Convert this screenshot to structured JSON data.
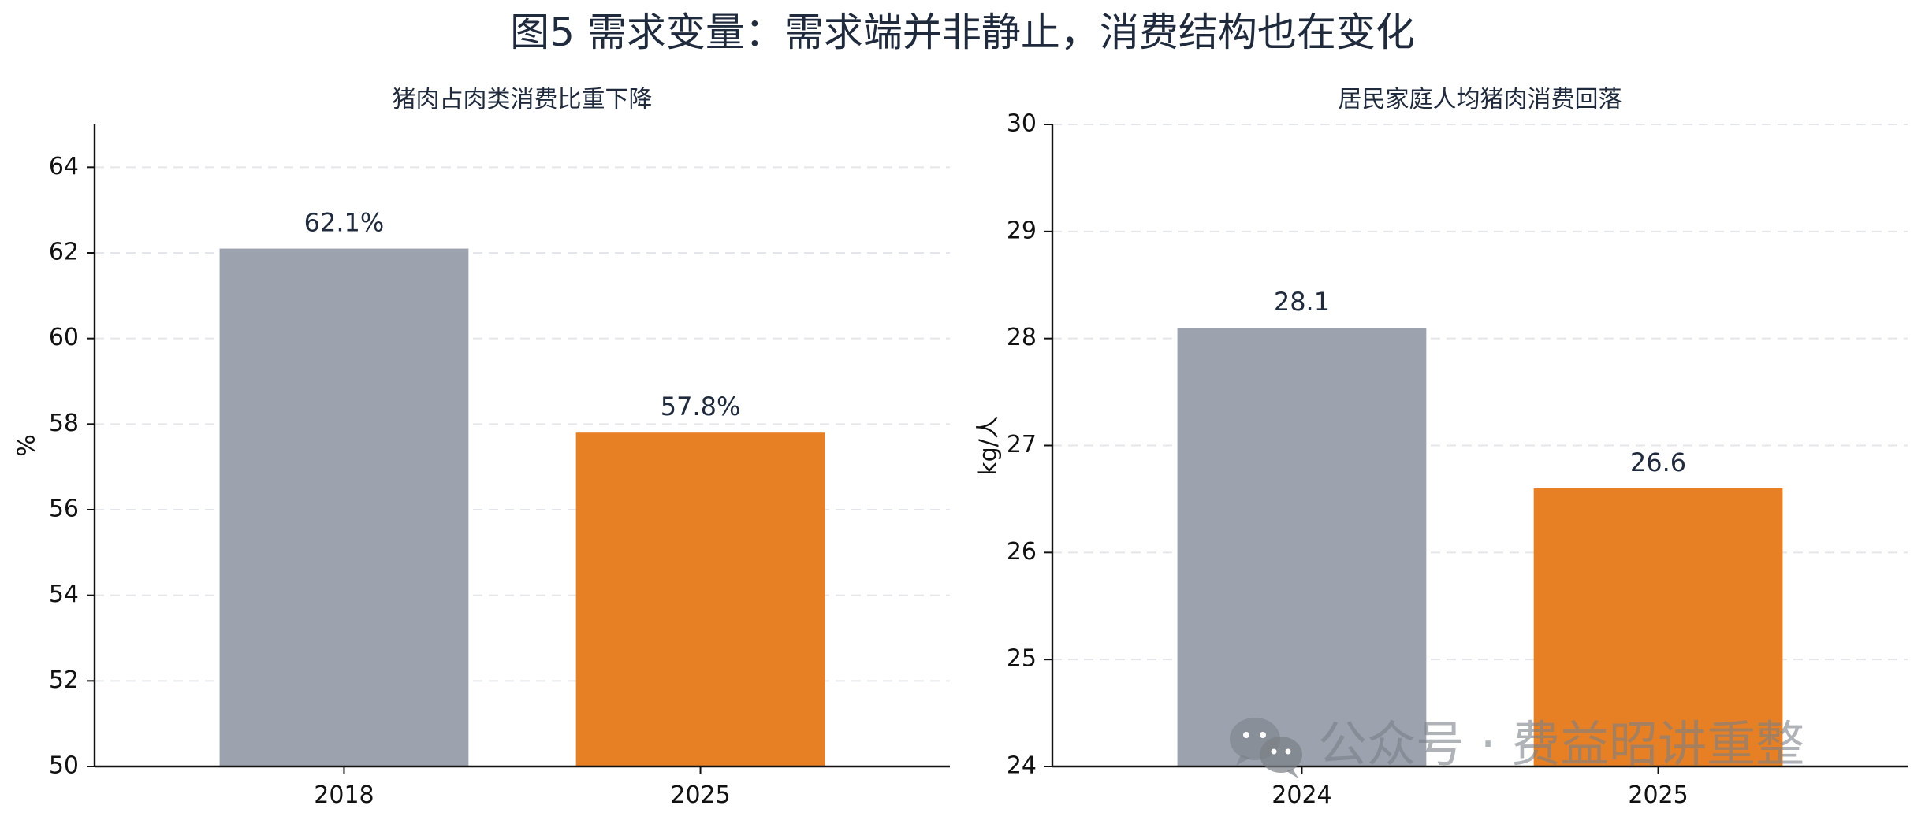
{
  "figure": {
    "title": "图5 需求变量：需求端并非静止，消费结构也在变化"
  },
  "chart_data": [
    {
      "type": "bar",
      "title": "猪肉占肉类消费比重下降",
      "xlabel": "",
      "ylabel": "%",
      "categories": [
        "2018",
        "2025"
      ],
      "values": [
        62.1,
        57.8
      ],
      "data_labels": [
        "62.1%",
        "57.8%"
      ],
      "bar_colors": [
        "#9ca3ae",
        "#e78024"
      ],
      "ylim": [
        50,
        65
      ],
      "yticks": [
        50,
        52,
        54,
        56,
        58,
        60,
        62,
        64
      ],
      "grid": "horizontal dashed",
      "legend": "none"
    },
    {
      "type": "bar",
      "title": "居民家庭人均猪肉消费回落",
      "xlabel": "",
      "ylabel": "kg/人",
      "categories": [
        "2024",
        "2025"
      ],
      "values": [
        28.1,
        26.6
      ],
      "data_labels": [
        "28.1",
        "26.6"
      ],
      "bar_colors": [
        "#9ca3ae",
        "#e78024"
      ],
      "ylim": [
        24,
        30
      ],
      "yticks": [
        24,
        25,
        26,
        27,
        28,
        29,
        30
      ],
      "grid": "horizontal dashed",
      "legend": "none"
    }
  ],
  "watermark": {
    "text": "公众号 · 费益昭讲重整",
    "icon": "wechat-icon"
  }
}
